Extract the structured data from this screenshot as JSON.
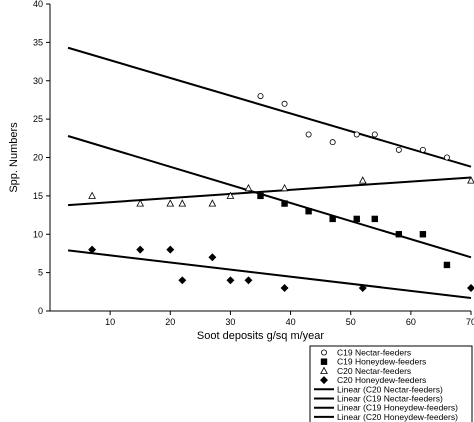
{
  "chart_data": {
    "type": "scatter",
    "xlabel": "Soot deposits g/sq m/year",
    "ylabel": "Spp. Numbers",
    "xlim": [
      0,
      70
    ],
    "ylim": [
      0,
      40
    ],
    "x_ticks": [
      10,
      20,
      30,
      40,
      50,
      60,
      70
    ],
    "y_ticks": [
      0,
      5,
      10,
      15,
      20,
      25,
      30,
      35,
      40
    ],
    "grid": false,
    "legend_position": "bottom-right",
    "series": [
      {
        "name": "C19 Nectar-feeders",
        "marker": "circle",
        "points": [
          [
            35,
            28
          ],
          [
            39,
            27
          ],
          [
            43,
            23
          ],
          [
            47,
            22
          ],
          [
            51,
            23
          ],
          [
            54,
            23
          ],
          [
            58,
            21
          ],
          [
            62,
            21
          ],
          [
            66,
            20
          ]
        ]
      },
      {
        "name": "C19 Honeydew-feeders",
        "marker": "square",
        "points": [
          [
            35,
            15
          ],
          [
            39,
            14
          ],
          [
            43,
            13
          ],
          [
            47,
            12
          ],
          [
            51,
            12
          ],
          [
            54,
            12
          ],
          [
            58,
            10
          ],
          [
            62,
            10
          ],
          [
            66,
            6
          ]
        ]
      },
      {
        "name": "C20 Nectar-feeders",
        "marker": "triangle",
        "points": [
          [
            7,
            15
          ],
          [
            15,
            14
          ],
          [
            20,
            14
          ],
          [
            22,
            14
          ],
          [
            27,
            14
          ],
          [
            30,
            15
          ],
          [
            33,
            16
          ],
          [
            39,
            16
          ],
          [
            52,
            17
          ],
          [
            70,
            17
          ]
        ]
      },
      {
        "name": "C20 Honeydew-feeders",
        "marker": "diamond",
        "points": [
          [
            7,
            8
          ],
          [
            15,
            8
          ],
          [
            20,
            8
          ],
          [
            22,
            4
          ],
          [
            27,
            7
          ],
          [
            30,
            4
          ],
          [
            33,
            4
          ],
          [
            39,
            3
          ],
          [
            52,
            3
          ],
          [
            70,
            3
          ]
        ]
      }
    ],
    "trendlines": [
      {
        "name": "Linear (C20 Nectar-feeders)",
        "x": [
          3,
          70
        ],
        "y": [
          13.8,
          17.4
        ]
      },
      {
        "name": "Linear (C19 Nectar-feeders)",
        "x": [
          3,
          70
        ],
        "y": [
          34.3,
          18.8
        ]
      },
      {
        "name": "Linear (C19 Honeydew-feeders)",
        "x": [
          3,
          70
        ],
        "y": [
          22.8,
          7.0
        ]
      },
      {
        "name": "Linear (C20 Honeydew-feeders)",
        "x": [
          3,
          70
        ],
        "y": [
          7.9,
          1.7
        ]
      }
    ]
  }
}
